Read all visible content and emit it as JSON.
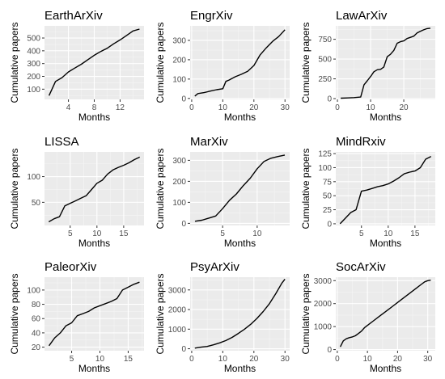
{
  "chart_data": [
    {
      "type": "line",
      "title": "EarthArXiv",
      "xlabel": "Months",
      "ylabel": "Cumulative papers",
      "xlim": [
        0.3,
        15.7
      ],
      "ylim": [
        20,
        595
      ],
      "xticks": [
        4,
        8,
        12
      ],
      "yticks": [
        100,
        200,
        300,
        400,
        500
      ],
      "grid": true,
      "x": [
        1,
        2,
        3,
        4,
        5,
        6,
        7,
        8,
        9,
        10,
        11,
        12,
        13,
        14,
        15
      ],
      "y": [
        50,
        160,
        190,
        235,
        265,
        295,
        330,
        365,
        395,
        420,
        455,
        485,
        520,
        555,
        570
      ]
    },
    {
      "type": "line",
      "title": "EngrXiv",
      "xlabel": "Months",
      "ylabel": "Cumulative papers",
      "xlim": [
        -0.5,
        31.5
      ],
      "ylim": [
        -5,
        375
      ],
      "xticks": [
        0,
        10,
        20,
        30
      ],
      "yticks": [
        0,
        100,
        200,
        300
      ],
      "grid": true,
      "x": [
        1,
        2,
        4,
        6,
        8,
        10,
        11,
        12,
        14,
        16,
        18,
        20,
        22,
        24,
        26,
        28,
        30
      ],
      "y": [
        12,
        25,
        30,
        38,
        45,
        50,
        88,
        95,
        112,
        125,
        140,
        170,
        225,
        262,
        295,
        320,
        355
      ]
    },
    {
      "type": "line",
      "title": "LawArXiv",
      "xlabel": "Months",
      "ylabel": "Cumulative papers",
      "xlim": [
        -0.5,
        29.5
      ],
      "ylim": [
        -10,
        920
      ],
      "xticks": [
        0,
        10,
        20
      ],
      "yticks": [
        0,
        250,
        500,
        750
      ],
      "grid": true,
      "x": [
        1,
        3,
        5,
        7,
        8,
        9,
        10,
        11,
        12,
        13,
        14,
        15,
        16,
        17,
        18,
        19,
        20,
        21,
        22,
        23,
        24,
        25,
        26,
        27,
        28
      ],
      "y": [
        5,
        8,
        12,
        20,
        175,
        225,
        280,
        340,
        365,
        370,
        400,
        530,
        560,
        610,
        700,
        720,
        730,
        760,
        775,
        790,
        830,
        850,
        870,
        885,
        890
      ]
    },
    {
      "type": "line",
      "title": "LISSA",
      "xlabel": "Months",
      "ylabel": "Cumulative papers",
      "xlim": [
        0.2,
        18.8
      ],
      "ylim": [
        5,
        148
      ],
      "xticks": [
        5,
        10,
        15
      ],
      "yticks": [
        50,
        100
      ],
      "grid": true,
      "x": [
        1,
        2,
        3,
        4,
        5,
        6,
        7,
        8,
        9,
        10,
        11,
        12,
        13,
        14,
        15,
        16,
        17,
        18
      ],
      "y": [
        12,
        18,
        22,
        43,
        48,
        53,
        58,
        63,
        75,
        87,
        93,
        105,
        113,
        118,
        122,
        127,
        133,
        138
      ]
    },
    {
      "type": "line",
      "title": "MarXiv",
      "xlabel": "Months",
      "ylabel": "Cumulative papers",
      "xlim": [
        0.3,
        14.7
      ],
      "ylim": [
        -10,
        340
      ],
      "xticks": [
        5,
        10
      ],
      "yticks": [
        0,
        100,
        200,
        300
      ],
      "grid": true,
      "x": [
        1,
        2,
        3,
        4,
        5,
        6,
        7,
        8,
        9,
        10,
        11,
        12,
        13,
        14
      ],
      "y": [
        10,
        15,
        25,
        35,
        70,
        110,
        140,
        180,
        215,
        260,
        295,
        310,
        318,
        325
      ]
    },
    {
      "type": "line",
      "title": "MindRxiv",
      "xlabel": "Months",
      "ylabel": "Cumulative papers",
      "xlim": [
        0.2,
        18.8
      ],
      "ylim": [
        -3,
        128
      ],
      "xticks": [
        5,
        10,
        15
      ],
      "yticks": [
        0,
        25,
        50,
        75,
        100,
        125
      ],
      "grid": true,
      "x": [
        1,
        2,
        3,
        4,
        5,
        6,
        7,
        8,
        9,
        10,
        11,
        12,
        13,
        14,
        15,
        16,
        17,
        18
      ],
      "y": [
        0,
        10,
        20,
        25,
        58,
        60,
        63,
        66,
        68,
        71,
        76,
        82,
        89,
        92,
        94,
        100,
        115,
        120
      ]
    },
    {
      "type": "line",
      "title": "PaleorXiv",
      "xlabel": "Months",
      "ylabel": "Cumulative papers",
      "xlim": [
        0.2,
        17.8
      ],
      "ylim": [
        15,
        118
      ],
      "xticks": [
        5,
        10,
        15
      ],
      "yticks": [
        20,
        40,
        60,
        80,
        100
      ],
      "grid": true,
      "x": [
        1,
        2,
        3,
        4,
        5,
        6,
        7,
        8,
        9,
        10,
        11,
        12,
        13,
        14,
        15,
        16,
        17
      ],
      "y": [
        22,
        33,
        40,
        50,
        54,
        64,
        67,
        70,
        75,
        78,
        81,
        84,
        88,
        100,
        104,
        108,
        111
      ]
    },
    {
      "type": "line",
      "title": "PsyArXiv",
      "xlabel": "Months",
      "ylabel": "Cumulative papers",
      "xlim": [
        -0.5,
        31.5
      ],
      "ylim": [
        -100,
        3650
      ],
      "xticks": [
        0,
        10,
        20,
        30
      ],
      "yticks": [
        0,
        1000,
        2000,
        3000
      ],
      "grid": true,
      "x": [
        1,
        3,
        5,
        7,
        9,
        11,
        13,
        15,
        17,
        19,
        21,
        23,
        25,
        27,
        29,
        30
      ],
      "y": [
        30,
        80,
        120,
        200,
        300,
        420,
        580,
        780,
        1000,
        1250,
        1550,
        1900,
        2300,
        2800,
        3350,
        3550
      ]
    },
    {
      "type": "line",
      "title": "SocArXiv",
      "xlabel": "Months",
      "ylabel": "Cumulative papers",
      "xlim": [
        -0.5,
        32.5
      ],
      "ylim": [
        -50,
        3150
      ],
      "xticks": [
        0,
        10,
        20,
        30
      ],
      "yticks": [
        0,
        1000,
        2000,
        3000
      ],
      "grid": true,
      "x": [
        1,
        2,
        3,
        4,
        5,
        6,
        7,
        8,
        9,
        10,
        12,
        14,
        16,
        18,
        20,
        22,
        24,
        26,
        28,
        29,
        30,
        31
      ],
      "y": [
        120,
        380,
        470,
        520,
        550,
        600,
        700,
        800,
        950,
        1050,
        1250,
        1450,
        1650,
        1850,
        2050,
        2250,
        2450,
        2650,
        2850,
        2950,
        3000,
        3020
      ]
    }
  ]
}
